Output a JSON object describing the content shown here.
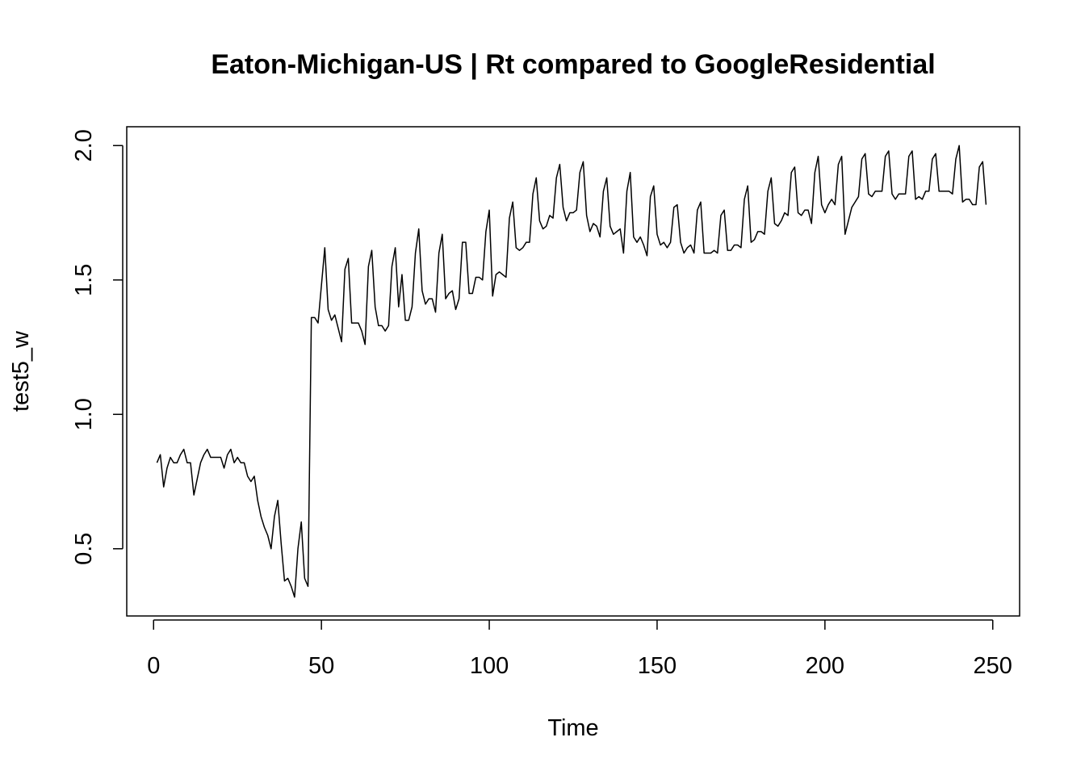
{
  "chart_data": {
    "type": "line",
    "title": "Eaton-Michigan-US | Rt compared to GoogleResidential",
    "xlabel": "Time",
    "ylabel": "test5_w",
    "xlim": [
      -8,
      258
    ],
    "ylim": [
      0.25,
      2.07
    ],
    "xticks": [
      0,
      50,
      100,
      150,
      200,
      250
    ],
    "yticks": [
      0.5,
      1.0,
      1.5,
      2.0
    ],
    "xtick_labels": [
      "0",
      "50",
      "100",
      "150",
      "200",
      "250"
    ],
    "ytick_labels": [
      "0.5",
      "1.0",
      "1.5",
      "2.0"
    ],
    "grid": false,
    "line_color": "#000000",
    "series": [
      {
        "x_start": 1,
        "values": [
          0.82,
          0.85,
          0.73,
          0.8,
          0.84,
          0.82,
          0.82,
          0.85,
          0.87,
          0.82,
          0.82,
          0.7,
          0.76,
          0.82,
          0.85,
          0.87,
          0.84,
          0.84,
          0.84,
          0.84,
          0.8,
          0.85,
          0.87,
          0.82,
          0.84,
          0.82,
          0.82,
          0.77,
          0.75,
          0.77,
          0.68,
          0.62,
          0.58,
          0.55,
          0.5,
          0.62,
          0.68,
          0.52,
          0.38,
          0.39,
          0.36,
          0.32,
          0.5,
          0.6,
          0.39,
          0.36,
          1.36,
          1.36,
          1.34,
          1.48,
          1.62,
          1.39,
          1.35,
          1.37,
          1.32,
          1.27,
          1.54,
          1.58,
          1.34,
          1.34,
          1.34,
          1.31,
          1.26,
          1.55,
          1.61,
          1.4,
          1.33,
          1.33,
          1.31,
          1.33,
          1.55,
          1.62,
          1.4,
          1.52,
          1.35,
          1.35,
          1.4,
          1.6,
          1.69,
          1.46,
          1.41,
          1.43,
          1.43,
          1.38,
          1.6,
          1.67,
          1.43,
          1.45,
          1.46,
          1.39,
          1.43,
          1.64,
          1.64,
          1.45,
          1.45,
          1.51,
          1.51,
          1.5,
          1.68,
          1.76,
          1.44,
          1.52,
          1.53,
          1.52,
          1.51,
          1.73,
          1.79,
          1.62,
          1.61,
          1.62,
          1.64,
          1.64,
          1.82,
          1.88,
          1.72,
          1.69,
          1.7,
          1.74,
          1.73,
          1.88,
          1.93,
          1.77,
          1.72,
          1.75,
          1.75,
          1.76,
          1.9,
          1.94,
          1.74,
          1.68,
          1.71,
          1.7,
          1.66,
          1.83,
          1.88,
          1.7,
          1.67,
          1.68,
          1.69,
          1.6,
          1.83,
          1.9,
          1.66,
          1.64,
          1.66,
          1.63,
          1.59,
          1.81,
          1.85,
          1.67,
          1.63,
          1.64,
          1.62,
          1.64,
          1.77,
          1.78,
          1.64,
          1.6,
          1.62,
          1.63,
          1.6,
          1.76,
          1.79,
          1.6,
          1.6,
          1.6,
          1.61,
          1.6,
          1.74,
          1.76,
          1.61,
          1.61,
          1.63,
          1.63,
          1.62,
          1.8,
          1.85,
          1.64,
          1.65,
          1.68,
          1.68,
          1.67,
          1.83,
          1.88,
          1.71,
          1.7,
          1.72,
          1.75,
          1.74,
          1.9,
          1.92,
          1.75,
          1.74,
          1.76,
          1.76,
          1.71,
          1.9,
          1.96,
          1.78,
          1.75,
          1.78,
          1.8,
          1.78,
          1.93,
          1.96,
          1.67,
          1.72,
          1.77,
          1.79,
          1.81,
          1.95,
          1.97,
          1.82,
          1.81,
          1.83,
          1.83,
          1.83,
          1.96,
          1.98,
          1.82,
          1.8,
          1.82,
          1.82,
          1.82,
          1.96,
          1.98,
          1.8,
          1.81,
          1.8,
          1.83,
          1.83,
          1.95,
          1.97,
          1.83,
          1.83,
          1.83,
          1.83,
          1.82,
          1.95,
          2.0,
          1.79,
          1.8,
          1.8,
          1.78,
          1.78,
          1.92,
          1.94,
          1.78
        ]
      }
    ]
  }
}
